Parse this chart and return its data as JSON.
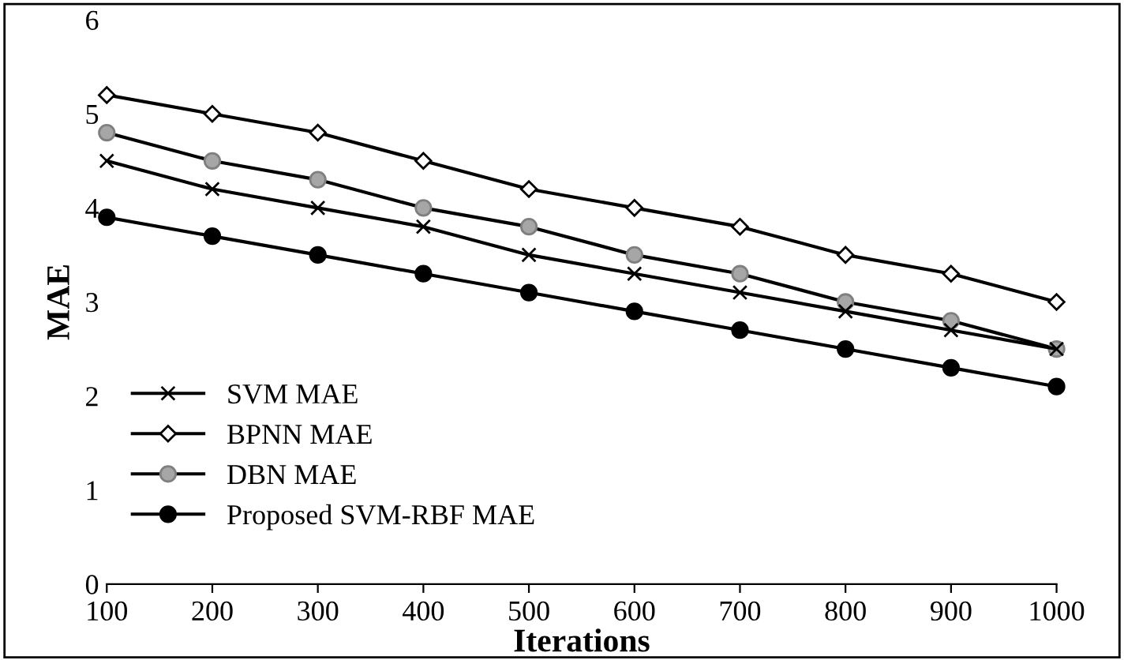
{
  "chart_data": {
    "type": "line",
    "xlabel": "Iterations",
    "ylabel": "MAE",
    "categories": [
      "100",
      "200",
      "300",
      "400",
      "500",
      "600",
      "700",
      "800",
      "900",
      "1000"
    ],
    "series": [
      {
        "name": "SVM MAE",
        "color": "#000000",
        "marker": "cross",
        "values": [
          4.5,
          4.2,
          4.0,
          3.8,
          3.5,
          3.3,
          3.1,
          2.9,
          2.7,
          2.5
        ]
      },
      {
        "name": "BPNN MAE",
        "color": "#000000",
        "marker": "diamond",
        "values": [
          5.2,
          5.0,
          4.8,
          4.5,
          4.2,
          4.0,
          3.8,
          3.5,
          3.3,
          3.0
        ]
      },
      {
        "name": "DBN MAE",
        "color": "#000000",
        "marker": "circle",
        "values": [
          4.8,
          4.5,
          4.3,
          4.0,
          3.8,
          3.5,
          3.3,
          3.0,
          2.8,
          2.5
        ]
      },
      {
        "name": "Proposed SVM-RBF MAE",
        "color": "#000000",
        "marker": "circle",
        "values": [
          3.9,
          3.7,
          3.5,
          3.3,
          3.1,
          2.9,
          2.7,
          2.5,
          2.3,
          2.1
        ]
      }
    ],
    "ylim": [
      0,
      6
    ],
    "yticks": [
      0,
      1,
      2,
      3,
      4,
      5,
      6
    ],
    "grid": false,
    "legend": "bottom left",
    "line_style": "solid"
  }
}
